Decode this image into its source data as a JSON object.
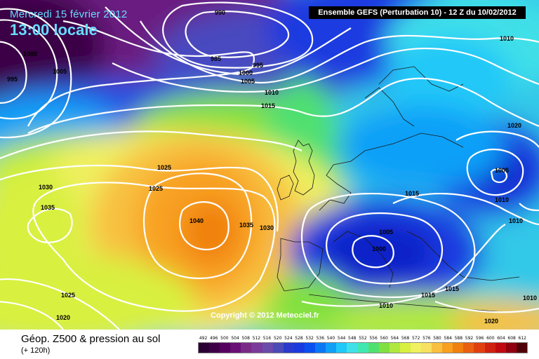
{
  "header": {
    "date": "Mercredi 15 février 2012",
    "time": "13:00 locale",
    "run": "Ensemble GEFS (Perturbation 10)  -  12 Z du 10/02/2012"
  },
  "copyright": "Copyright © 2012 Meteociel.fr",
  "footer": {
    "title": "Géop. Z500 & pression au sol",
    "subtitle": "(+ 120h)"
  },
  "isobar_labels": [
    "990",
    "985",
    "995",
    "1000",
    "1005",
    "1010",
    "1015",
    "1000",
    "1005",
    "995",
    "1010",
    "1020",
    "1025",
    "1025",
    "1030",
    "1035",
    "1040",
    "1035",
    "1030",
    "1025",
    "1020",
    "1015",
    "1005",
    "1000",
    "1005",
    "1010",
    "1010",
    "1015",
    "1010",
    "1015",
    "1020",
    "1010"
  ],
  "scale": {
    "labels": [
      "492",
      "496",
      "500",
      "504",
      "508",
      "512",
      "516",
      "520",
      "524",
      "528",
      "532",
      "536",
      "540",
      "544",
      "548",
      "552",
      "556",
      "560",
      "564",
      "568",
      "572",
      "576",
      "580",
      "584",
      "588",
      "592",
      "596",
      "600",
      "604",
      "608",
      "612"
    ],
    "colors": [
      "#2a0033",
      "#3d0047",
      "#55005f",
      "#6a0f75",
      "#7a2a86",
      "#7a3a9a",
      "#6a4aaa",
      "#4a4ab8",
      "#2a3acc",
      "#1a3ae0",
      "#0a50f0",
      "#0a78f5",
      "#10a0f8",
      "#20c8f8",
      "#40e0e8",
      "#40e8b0",
      "#50e070",
      "#80e040",
      "#b0e840",
      "#d8f040",
      "#f0f060",
      "#f8e060",
      "#f8c040",
      "#f8a020",
      "#f08010",
      "#e86010",
      "#e04010",
      "#d02010",
      "#c00a10",
      "#900010",
      "#500008"
    ]
  },
  "colors": {
    "title": "#66ddff",
    "isobar": "#ffffff"
  }
}
